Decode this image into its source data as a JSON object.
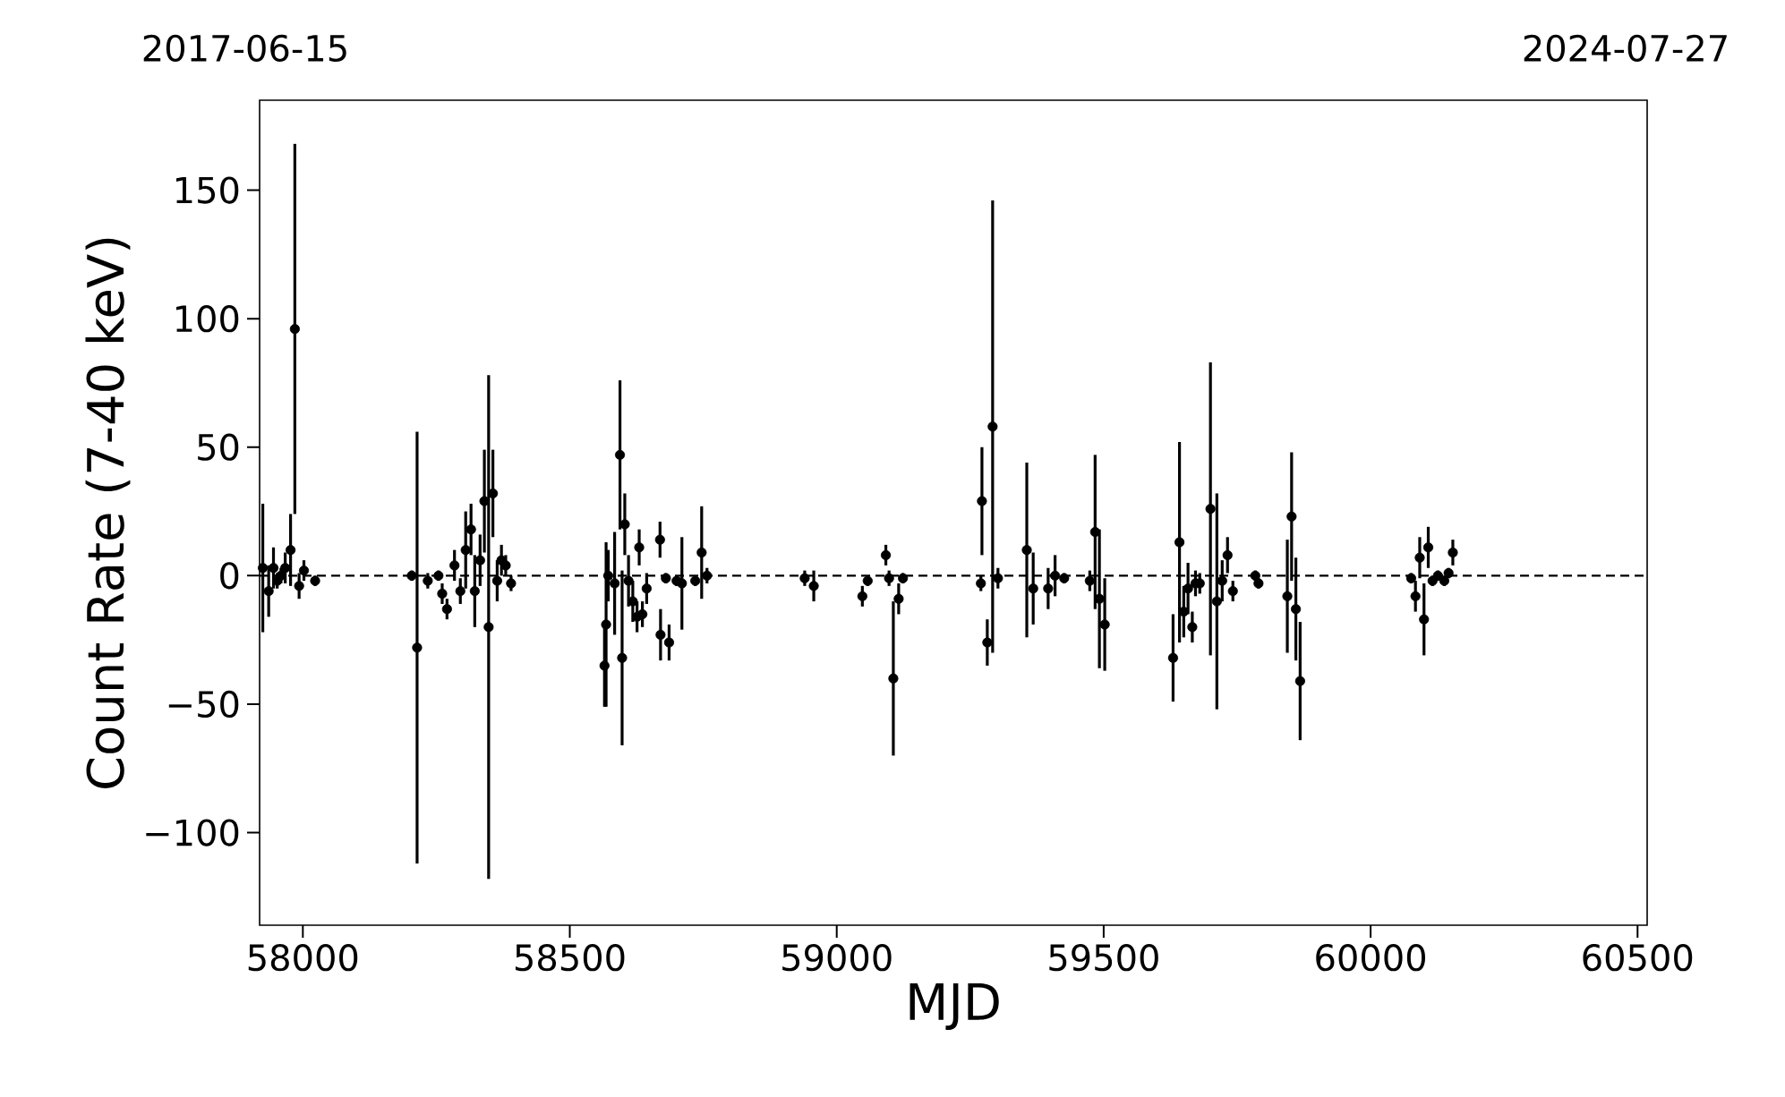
{
  "chart_data": {
    "type": "scatter",
    "xlabel": "MJD",
    "ylabel": "Count Rate (7-40 keV)",
    "annotations": [
      "2017-06-15",
      "2024-07-27"
    ],
    "xlim": [
      57919,
      60518
    ],
    "ylim": [
      -136,
      185
    ],
    "xticks": [
      58000,
      58500,
      59000,
      59500,
      60000,
      60500
    ],
    "yticks": [
      {
        "value": -100,
        "label": "−100"
      },
      {
        "value": -50,
        "label": "−50"
      },
      0,
      50,
      100,
      150
    ],
    "color": "#000000",
    "marker": "circle",
    "ref_lines": [
      {
        "axis": "y",
        "value": 0,
        "line_style": "dashed",
        "color": "#000000"
      }
    ],
    "x": [
      57925,
      57936,
      57945,
      57952,
      57959,
      57967,
      57977,
      57993,
      57985,
      58002,
      58023,
      58204,
      58214,
      58234,
      58254,
      58261,
      58270,
      58284,
      58295,
      58305,
      58315,
      58322,
      58332,
      58340,
      58356,
      58348,
      58364,
      58372,
      58380,
      58390,
      58565,
      58568,
      58572,
      58584,
      58594,
      58603,
      58598,
      58610,
      58618,
      58626,
      58630,
      58636,
      58644,
      58669,
      58670,
      58680,
      58686,
      58700,
      58710,
      58735,
      58747,
      58757,
      58940,
      58957,
      59048,
      59058,
      59092,
      59098,
      59116,
      59106,
      59124,
      59272,
      59270,
      59292,
      59282,
      59302,
      59356,
      59368,
      59396,
      59409,
      59426,
      59474,
      59484,
      59492,
      59502,
      59630,
      59642,
      59650,
      59658,
      59666,
      59672,
      59680,
      59700,
      59712,
      59722,
      59732,
      59742,
      59784,
      59790,
      59844,
      59852,
      59860,
      59868,
      60076,
      60084,
      60092,
      60100,
      60108,
      60116,
      60126,
      60138,
      60146,
      60154
    ],
    "values": [
      3,
      -6,
      3,
      -2,
      0,
      3,
      10,
      -4,
      96,
      2,
      -2,
      0,
      -28,
      -2,
      0,
      -7,
      -13,
      4,
      -6,
      10,
      18,
      -6,
      6,
      29,
      32,
      -20,
      -2,
      6,
      4,
      -3,
      -35,
      -19,
      0,
      -3,
      47,
      20,
      -32,
      -2,
      -10,
      -16,
      11,
      -15,
      -5,
      14,
      -23,
      -1,
      -26,
      -2,
      -3,
      -2,
      9,
      0,
      -1,
      -4,
      -8,
      -2,
      8,
      -1,
      -9,
      -40,
      -1,
      29,
      -3,
      58,
      -26,
      -1,
      10,
      -5,
      -5,
      0,
      -1,
      -2,
      17,
      -9,
      -19,
      -32,
      13,
      -14,
      -5,
      -20,
      -3,
      -3,
      26,
      -10,
      -2,
      8,
      -6,
      0,
      -3,
      -8,
      23,
      -13,
      -41,
      -1,
      -8,
      7,
      -17,
      11,
      -2,
      0,
      -2,
      1,
      9
    ],
    "errors": [
      25,
      10,
      8,
      3,
      3,
      6,
      14,
      5,
      72,
      4,
      2,
      2,
      84,
      3,
      2,
      4,
      4,
      6,
      5,
      15,
      10,
      14,
      10,
      20,
      17,
      98,
      8,
      6,
      4,
      3,
      16,
      32,
      10,
      20,
      29,
      12,
      34,
      10,
      8,
      6,
      7,
      5,
      6,
      7,
      10,
      2,
      7,
      2,
      18,
      2,
      18,
      3,
      3,
      6,
      4,
      2,
      4,
      3,
      6,
      30,
      2,
      21,
      3,
      88,
      9,
      4,
      34,
      14,
      8,
      8,
      2,
      4,
      30,
      27,
      18,
      17,
      39,
      10,
      10,
      6,
      5,
      4,
      57,
      42,
      8,
      7,
      4,
      2,
      2,
      22,
      25,
      20,
      23,
      2,
      6,
      8,
      14,
      8,
      2,
      2,
      2,
      2,
      5
    ]
  }
}
